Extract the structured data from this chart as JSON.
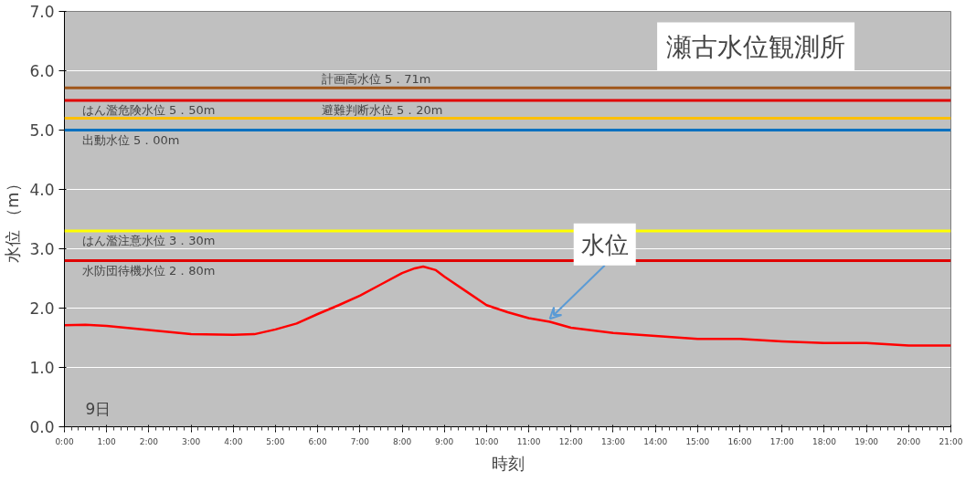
{
  "chart_data": {
    "type": "line",
    "title": "瀬古水位観測所",
    "xlabel": "時刻",
    "ylabel": "水位 （m）",
    "x": [
      0,
      0.5,
      1,
      2,
      3,
      4,
      4.5,
      5,
      5.5,
      6,
      6.5,
      7,
      7.5,
      8,
      8.3,
      8.5,
      8.8,
      9,
      9.5,
      10,
      10.5,
      11,
      11.5,
      12,
      13,
      14,
      15,
      16,
      17,
      18,
      19,
      20,
      21
    ],
    "series": [
      {
        "name": "水位",
        "color": "#ff0000",
        "values": [
          1.71,
          1.72,
          1.7,
          1.63,
          1.56,
          1.55,
          1.56,
          1.64,
          1.74,
          1.9,
          2.05,
          2.21,
          2.4,
          2.59,
          2.67,
          2.7,
          2.64,
          2.53,
          2.29,
          2.05,
          1.93,
          1.83,
          1.77,
          1.67,
          1.58,
          1.53,
          1.48,
          1.48,
          1.44,
          1.41,
          1.41,
          1.37,
          1.37
        ]
      }
    ],
    "xlim": [
      0,
      21
    ],
    "xticks": [
      {
        "value": 0,
        "label": "0:00"
      },
      {
        "value": 1,
        "label": "1:00"
      },
      {
        "value": 2,
        "label": "2:00"
      },
      {
        "value": 3,
        "label": "3:00"
      },
      {
        "value": 4,
        "label": "4:00"
      },
      {
        "value": 5,
        "label": "5:00"
      },
      {
        "value": 6,
        "label": "6:00"
      },
      {
        "value": 7,
        "label": "7:00"
      },
      {
        "value": 8,
        "label": "8:00"
      },
      {
        "value": 9,
        "label": "9:00"
      },
      {
        "value": 10,
        "label": "10:00"
      },
      {
        "value": 11,
        "label": "11:00"
      },
      {
        "value": 12,
        "label": "12:00"
      },
      {
        "value": 13,
        "label": "13:00"
      },
      {
        "value": 14,
        "label": "14:00"
      },
      {
        "value": 15,
        "label": "15:00"
      },
      {
        "value": 16,
        "label": "16:00"
      },
      {
        "value": 17,
        "label": "17:00"
      },
      {
        "value": 18,
        "label": "18:00"
      },
      {
        "value": 19,
        "label": "19:00"
      },
      {
        "value": 20,
        "label": "20:00"
      },
      {
        "value": 21,
        "label": "21:00"
      }
    ],
    "ylim": [
      0,
      7
    ],
    "yticks": [
      {
        "value": 0,
        "label": "0.0"
      },
      {
        "value": 1,
        "label": "1.0"
      },
      {
        "value": 2,
        "label": "2.0"
      },
      {
        "value": 3,
        "label": "3.0"
      },
      {
        "value": 4,
        "label": "4.0"
      },
      {
        "value": 5,
        "label": "5.0"
      },
      {
        "value": 6,
        "label": "6.0"
      },
      {
        "value": 7,
        "label": "7.0"
      }
    ],
    "ref_lines": [
      {
        "axis": "y",
        "value": 5.71,
        "label": "計画高水位 5．71m",
        "color": "#a0561a"
      },
      {
        "axis": "y",
        "value": 5.5,
        "label": "はん濫危険水位 5．50m",
        "color": "#e00000"
      },
      {
        "axis": "y",
        "value": 5.2,
        "label": "避難判断水位 5．20m",
        "color": "#ffc000"
      },
      {
        "axis": "y",
        "value": 5.0,
        "label": "出動水位 5．00m",
        "color": "#0070c0"
      },
      {
        "axis": "y",
        "value": 3.3,
        "label": "はん濫注意水位 3．30m",
        "color": "#ffff00"
      },
      {
        "axis": "y",
        "value": 2.8,
        "label": "水防団待機水位 2．80m",
        "color": "#e00000"
      }
    ],
    "annotations": [
      "9日"
    ],
    "grid": "y",
    "legend": false,
    "marker": "none",
    "line_style": "solid"
  }
}
